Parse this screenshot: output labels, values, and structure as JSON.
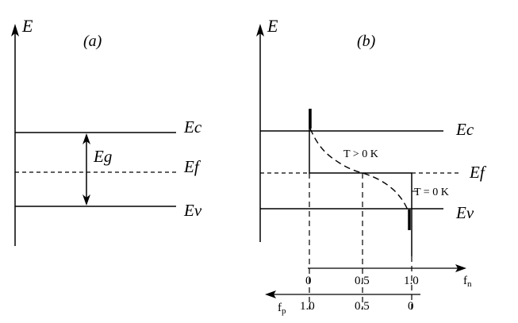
{
  "panel_a": {
    "caption": "(a)",
    "axis_label": "E",
    "levels": {
      "ec": "Ec",
      "ef": "Ef",
      "ev": "Ev"
    },
    "gap_label": "Eg"
  },
  "panel_b": {
    "caption": "(b)",
    "axis_label": "E",
    "levels": {
      "ec": "Ec",
      "ef": "Ef",
      "ev": "Ev"
    },
    "curve_labels": {
      "hot": "T > 0 K",
      "cold": "T = 0 K"
    },
    "fn_axis": {
      "label": "f",
      "subscript": "n",
      "ticks": [
        "0",
        "0.5",
        "1.0"
      ]
    },
    "fp_axis": {
      "label": "f",
      "subscript": "p",
      "ticks": [
        "1.0",
        "0.5",
        "0"
      ]
    }
  }
}
